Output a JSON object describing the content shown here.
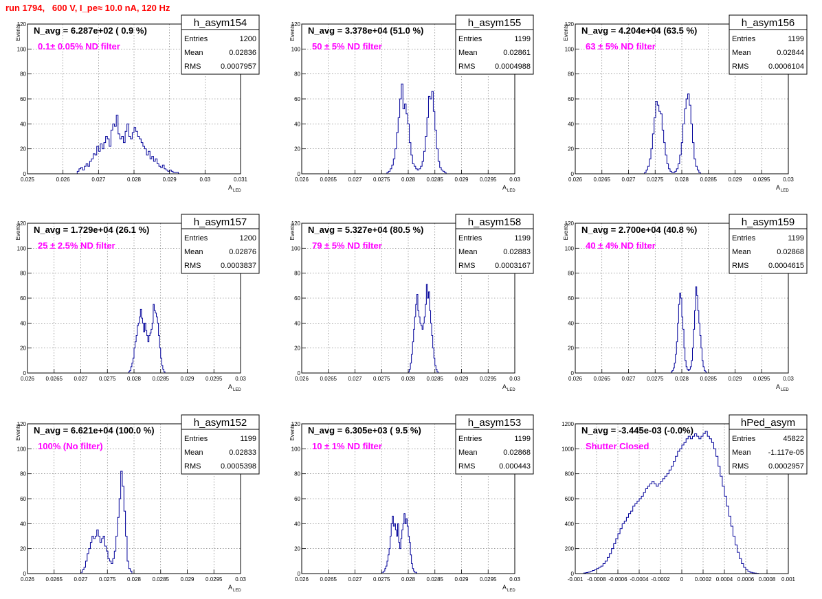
{
  "run_title": "run 1794,   600 V, I_pe≈ 10.0 nA, 120 Hz",
  "colors": {
    "title": "#ff0000",
    "annotation": "#ff00ff",
    "histogram": "#000099",
    "grid": "#666666"
  },
  "stat_labels": {
    "entries": "Entries",
    "mean": "Mean",
    "rms": "RMS"
  },
  "chart_data": [
    {
      "type": "histogram",
      "name": "h_asym154",
      "navg": "N_avg = 6.287e+02 ( 0.9 %)",
      "annotation": "0.1± 0.05% ND filter",
      "entries": "1200",
      "mean": "0.02836",
      "rms": "0.0007957",
      "ylabel": "Events",
      "xlabel": "A",
      "xlabel_sub": "LED",
      "xlim": [
        0.025,
        0.031
      ],
      "ylim": [
        0,
        120
      ],
      "xticks": [
        0.025,
        0.026,
        0.027,
        0.028,
        0.029,
        0.03,
        0.031
      ],
      "xticklabels": [
        "0.025",
        "0.026",
        "0.027",
        "0.028",
        "0.029",
        "0.03",
        "0.031"
      ],
      "yticks": [
        0,
        20,
        40,
        60,
        80,
        100,
        120
      ],
      "yticklabels": [
        "0",
        "20",
        "40",
        "60",
        "80",
        "100",
        "120"
      ],
      "bins": {
        "start": 0.0264,
        "width": 5e-05,
        "counts": [
          2,
          4,
          5,
          3,
          6,
          8,
          6,
          10,
          12,
          16,
          15,
          22,
          18,
          24,
          20,
          25,
          30,
          28,
          22,
          35,
          40,
          38,
          47,
          32,
          28,
          30,
          25,
          34,
          40,
          30,
          28,
          33,
          37,
          34,
          30,
          28,
          25,
          22,
          20,
          15,
          18,
          12,
          14,
          10,
          12,
          8,
          6,
          5,
          7,
          4,
          3,
          2,
          3,
          2,
          1,
          1,
          1
        ]
      }
    },
    {
      "type": "histogram",
      "name": "h_asym155",
      "navg": "N_avg = 3.378e+04 (51.0 %)",
      "annotation": "50 ± 5% ND filter",
      "entries": "1199",
      "mean": "0.02861",
      "rms": "0.0004988",
      "ylabel": "Events",
      "xlabel": "A",
      "xlabel_sub": "LED",
      "xlim": [
        0.026,
        0.03
      ],
      "ylim": [
        0,
        120
      ],
      "xticks": [
        0.026,
        0.0265,
        0.027,
        0.0275,
        0.028,
        0.0285,
        0.029,
        0.0295,
        0.03
      ],
      "xticklabels": [
        "0.026",
        "0.0265",
        "0.027",
        "0.0275",
        "0.028",
        "0.0285",
        "0.029",
        "0.0295",
        "0.03"
      ],
      "yticks": [
        0,
        20,
        40,
        60,
        80,
        100,
        120
      ],
      "yticklabels": [
        "0",
        "20",
        "40",
        "60",
        "80",
        "100",
        "120"
      ],
      "bins": {
        "start": 0.0276,
        "width": 3e-05,
        "counts": [
          1,
          2,
          4,
          7,
          12,
          20,
          33,
          45,
          60,
          72,
          52,
          56,
          48,
          40,
          25,
          15,
          8,
          6,
          4,
          3,
          4,
          6,
          10,
          18,
          30,
          45,
          62,
          60,
          66,
          50,
          35,
          20,
          10,
          5,
          3,
          2,
          1
        ]
      }
    },
    {
      "type": "histogram",
      "name": "h_asym156",
      "navg": "N_avg = 4.204e+04 (63.5 %)",
      "annotation": "63 ± 5% ND filter",
      "entries": "1199",
      "mean": "0.02844",
      "rms": "0.0006104",
      "ylabel": "Events",
      "xlabel": "A",
      "xlabel_sub": "LED",
      "xlim": [
        0.026,
        0.03
      ],
      "ylim": [
        0,
        120
      ],
      "xticks": [
        0.026,
        0.0265,
        0.027,
        0.0275,
        0.028,
        0.0285,
        0.029,
        0.0295,
        0.03
      ],
      "xticklabels": [
        "0.026",
        "0.0265",
        "0.027",
        "0.0275",
        "0.028",
        "0.0285",
        "0.029",
        "0.0295",
        "0.03"
      ],
      "yticks": [
        0,
        20,
        40,
        60,
        80,
        100,
        120
      ],
      "yticklabels": [
        "0",
        "20",
        "40",
        "60",
        "80",
        "100",
        "120"
      ],
      "bins": {
        "start": 0.0273,
        "width": 3e-05,
        "counts": [
          1,
          3,
          6,
          12,
          20,
          32,
          45,
          58,
          55,
          50,
          48,
          35,
          25,
          15,
          8,
          4,
          2,
          1,
          1,
          2,
          4,
          8,
          15,
          25,
          40,
          52,
          60,
          64,
          55,
          40,
          25,
          12,
          6,
          3,
          1
        ]
      }
    },
    {
      "type": "histogram",
      "name": "h_asym157",
      "navg": "N_avg = 1.729e+04 (26.1 %)",
      "annotation": "25 ± 2.5% ND filter",
      "entries": "1200",
      "mean": "0.02876",
      "rms": "0.0003837",
      "ylabel": "Events",
      "xlabel": "A",
      "xlabel_sub": "LED",
      "xlim": [
        0.026,
        0.03
      ],
      "ylim": [
        0,
        120
      ],
      "xticks": [
        0.026,
        0.0265,
        0.027,
        0.0275,
        0.028,
        0.0285,
        0.029,
        0.0295,
        0.03
      ],
      "xticklabels": [
        "0.026",
        "0.0265",
        "0.027",
        "0.0275",
        "0.028",
        "0.0285",
        "0.029",
        "0.0295",
        "0.03"
      ],
      "yticks": [
        0,
        20,
        40,
        60,
        80,
        100,
        120
      ],
      "yticklabels": [
        "0",
        "20",
        "40",
        "60",
        "80",
        "100",
        "120"
      ],
      "bins": {
        "start": 0.0279,
        "width": 2e-05,
        "counts": [
          1,
          2,
          5,
          8,
          12,
          20,
          25,
          30,
          38,
          40,
          45,
          51,
          44,
          40,
          33,
          40,
          34,
          30,
          25,
          30,
          32,
          35,
          40,
          55,
          50,
          48,
          45,
          40,
          30,
          20,
          12,
          6,
          3,
          1
        ]
      }
    },
    {
      "type": "histogram",
      "name": "h_asym158",
      "navg": "N_avg = 5.327e+04 (80.5 %)",
      "annotation": "79 ± 5% ND filter",
      "entries": "1199",
      "mean": "0.02883",
      "rms": "0.0003167",
      "ylabel": "Events",
      "xlabel": "A",
      "xlabel_sub": "LED",
      "xlim": [
        0.026,
        0.03
      ],
      "ylim": [
        0,
        120
      ],
      "xticks": [
        0.026,
        0.0265,
        0.027,
        0.0275,
        0.028,
        0.0285,
        0.029,
        0.0295,
        0.03
      ],
      "xticklabels": [
        "0.026",
        "0.0265",
        "0.027",
        "0.0275",
        "0.028",
        "0.0285",
        "0.029",
        "0.0295",
        "0.03"
      ],
      "yticks": [
        0,
        20,
        40,
        60,
        80,
        100,
        120
      ],
      "yticklabels": [
        "0",
        "20",
        "40",
        "60",
        "80",
        "100",
        "120"
      ],
      "bins": {
        "start": 0.028,
        "width": 2e-05,
        "counts": [
          1,
          3,
          8,
          15,
          25,
          35,
          45,
          55,
          63,
          50,
          45,
          40,
          38,
          35,
          40,
          45,
          55,
          71,
          60,
          65,
          50,
          40,
          30,
          20,
          12,
          6,
          3,
          1
        ]
      }
    },
    {
      "type": "histogram",
      "name": "h_asym159",
      "navg": "N_avg = 2.700e+04 (40.8 %)",
      "annotation": "40 ± 4% ND filter",
      "entries": "1199",
      "mean": "0.02868",
      "rms": "0.0004615",
      "ylabel": "Events",
      "xlabel": "A",
      "xlabel_sub": "LED",
      "xlim": [
        0.026,
        0.03
      ],
      "ylim": [
        0,
        120
      ],
      "xticks": [
        0.026,
        0.0265,
        0.027,
        0.0275,
        0.028,
        0.0285,
        0.029,
        0.0295,
        0.03
      ],
      "xticklabels": [
        "0.026",
        "0.0265",
        "0.027",
        "0.0275",
        "0.028",
        "0.0285",
        "0.029",
        "0.0295",
        "0.03"
      ],
      "yticks": [
        0,
        20,
        40,
        60,
        80,
        100,
        120
      ],
      "yticklabels": [
        "0",
        "20",
        "40",
        "60",
        "80",
        "100",
        "120"
      ],
      "bins": {
        "start": 0.0278,
        "width": 2e-05,
        "counts": [
          1,
          2,
          4,
          8,
          15,
          25,
          40,
          55,
          64,
          60,
          45,
          35,
          20,
          10,
          5,
          3,
          2,
          3,
          5,
          10,
          20,
          35,
          50,
          69,
          62,
          50,
          40,
          30,
          20,
          10,
          5,
          2,
          1
        ]
      }
    },
    {
      "type": "histogram",
      "name": "h_asym152",
      "navg": "N_avg = 6.621e+04 (100.0 %)",
      "annotation": "100% (No filter)",
      "entries": "1199",
      "mean": "0.02833",
      "rms": "0.0005398",
      "ylabel": "Events",
      "xlabel": "A",
      "xlabel_sub": "LED",
      "xlim": [
        0.026,
        0.03
      ],
      "ylim": [
        0,
        120
      ],
      "xticks": [
        0.026,
        0.0265,
        0.027,
        0.0275,
        0.028,
        0.0285,
        0.029,
        0.0295,
        0.03
      ],
      "xticklabels": [
        "0.026",
        "0.0265",
        "0.027",
        "0.0275",
        "0.028",
        "0.0285",
        "0.029",
        "0.0295",
        "0.03"
      ],
      "yticks": [
        0,
        20,
        40,
        60,
        80,
        100,
        120
      ],
      "yticklabels": [
        "0",
        "20",
        "40",
        "60",
        "80",
        "100",
        "120"
      ],
      "bins": {
        "start": 0.027,
        "width": 3e-05,
        "counts": [
          1,
          3,
          5,
          10,
          16,
          20,
          25,
          30,
          28,
          30,
          35,
          30,
          25,
          28,
          30,
          22,
          18,
          12,
          10,
          8,
          12,
          18,
          30,
          45,
          60,
          82,
          70,
          50,
          30,
          10,
          4,
          2
        ]
      }
    },
    {
      "type": "histogram",
      "name": "h_asym153",
      "navg": "N_avg = 6.305e+03 ( 9.5 %)",
      "annotation": "10 ± 1% ND filter",
      "entries": "1199",
      "mean": "0.02868",
      "rms": "0.000443",
      "ylabel": "Events",
      "xlabel": "A",
      "xlabel_sub": "LED",
      "xlim": [
        0.026,
        0.03
      ],
      "ylim": [
        0,
        120
      ],
      "xticks": [
        0.026,
        0.0265,
        0.027,
        0.0275,
        0.028,
        0.0285,
        0.029,
        0.0295,
        0.03
      ],
      "xticklabels": [
        "0.026",
        "0.0265",
        "0.027",
        "0.0275",
        "0.028",
        "0.0285",
        "0.029",
        "0.0295",
        "0.03"
      ],
      "yticks": [
        0,
        20,
        40,
        60,
        80,
        100,
        120
      ],
      "yticklabels": [
        "0",
        "20",
        "40",
        "60",
        "80",
        "100",
        "120"
      ],
      "bins": {
        "start": 0.0275,
        "width": 2e-05,
        "counts": [
          1,
          1,
          2,
          4,
          6,
          10,
          15,
          20,
          30,
          40,
          46,
          38,
          40,
          35,
          30,
          40,
          25,
          20,
          28,
          35,
          40,
          48,
          40,
          44,
          38,
          30,
          25,
          15,
          8,
          4,
          2,
          1,
          1
        ]
      }
    },
    {
      "type": "histogram",
      "name": "hPed_asym",
      "navg": "N_avg = -3.445e-03 (-0.0%)",
      "annotation": "Shutter Closed",
      "entries": "45822",
      "mean": "-1.117e-05",
      "rms": "0.0002957",
      "ylabel": "",
      "xlabel": "",
      "xlabel_sub": "",
      "xlim": [
        -0.001,
        0.001
      ],
      "ylim": [
        0,
        1200
      ],
      "xticks": [
        -0.001,
        -0.0008,
        -0.0006,
        -0.0004,
        -0.0002,
        0,
        0.0002,
        0.0004,
        0.0006,
        0.0008,
        0.001
      ],
      "xticklabels": [
        "-0.001",
        "-0.0008",
        "-0.0006",
        "-0.0004",
        "-0.0002",
        "0",
        "0.0002",
        "0.0004",
        "0.0006",
        "0.0008",
        "0.001"
      ],
      "yticks": [
        0,
        200,
        400,
        600,
        800,
        1000,
        1200
      ],
      "yticklabels": [
        "0",
        "200",
        "400",
        "600",
        "800",
        "1000",
        "1200"
      ],
      "bins": {
        "start": -0.00092,
        "width": 2e-05,
        "counts": [
          5,
          8,
          12,
          18,
          25,
          30,
          40,
          50,
          60,
          80,
          100,
          130,
          160,
          200,
          240,
          280,
          320,
          360,
          400,
          420,
          450,
          480,
          500,
          540,
          560,
          580,
          600,
          620,
          650,
          680,
          700,
          720,
          740,
          720,
          700,
          720,
          740,
          760,
          780,
          800,
          830,
          860,
          900,
          940,
          980,
          1000,
          1030,
          1050,
          1080,
          1100,
          1080,
          1100,
          1120,
          1100,
          1080,
          1100,
          1120,
          1140,
          1100,
          1080,
          1050,
          1000,
          940,
          860,
          780,
          700,
          620,
          540,
          460,
          380,
          300,
          230,
          170,
          120,
          80,
          50,
          30,
          18,
          10,
          6,
          4,
          2
        ]
      }
    }
  ]
}
